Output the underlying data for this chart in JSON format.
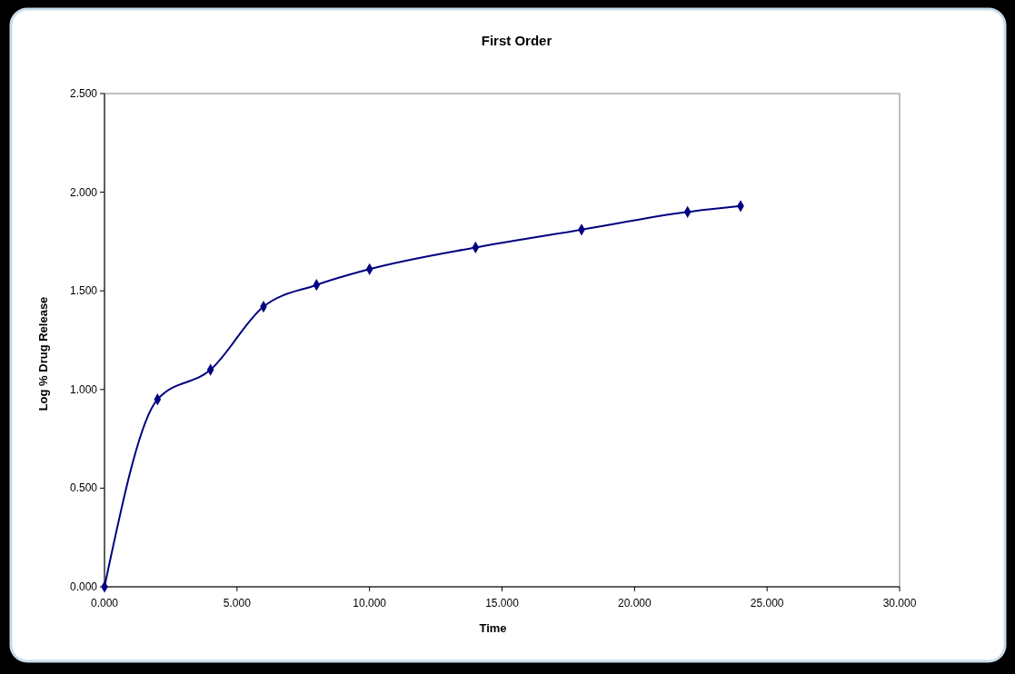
{
  "chart_data": {
    "type": "line",
    "title": "First Order",
    "xlabel": "Time",
    "ylabel": "Log % Drug Release",
    "x": [
      0,
      2,
      4,
      6,
      8,
      10,
      14,
      18,
      22,
      24
    ],
    "series": [
      {
        "color": "#000080",
        "values": [
          0,
          0.95,
          1.1,
          1.42,
          1.53,
          1.61,
          1.72,
          1.81,
          1.9,
          1.93
        ]
      }
    ],
    "xlim": [
      0,
      30
    ],
    "xticks": [
      {
        "value": 0,
        "label": "0.000"
      },
      {
        "value": 5,
        "label": "5.000"
      },
      {
        "value": 10,
        "label": "10.000"
      },
      {
        "value": 15,
        "label": "15.000"
      },
      {
        "value": 20,
        "label": "20.000"
      },
      {
        "value": 25,
        "label": "25.000"
      },
      {
        "value": 30,
        "label": "30.000"
      }
    ],
    "ylim": [
      0,
      2.5
    ],
    "yticks": [
      {
        "value": 0,
        "label": "0.000"
      },
      {
        "value": 0.5,
        "label": "0.500"
      },
      {
        "value": 1,
        "label": "1.000"
      },
      {
        "value": 1.5,
        "label": "1.500"
      },
      {
        "value": 2,
        "label": "2.000"
      },
      {
        "value": 2.5,
        "label": "2.500"
      }
    ],
    "grid": false,
    "marker": "diamond",
    "line_style": "solid"
  }
}
